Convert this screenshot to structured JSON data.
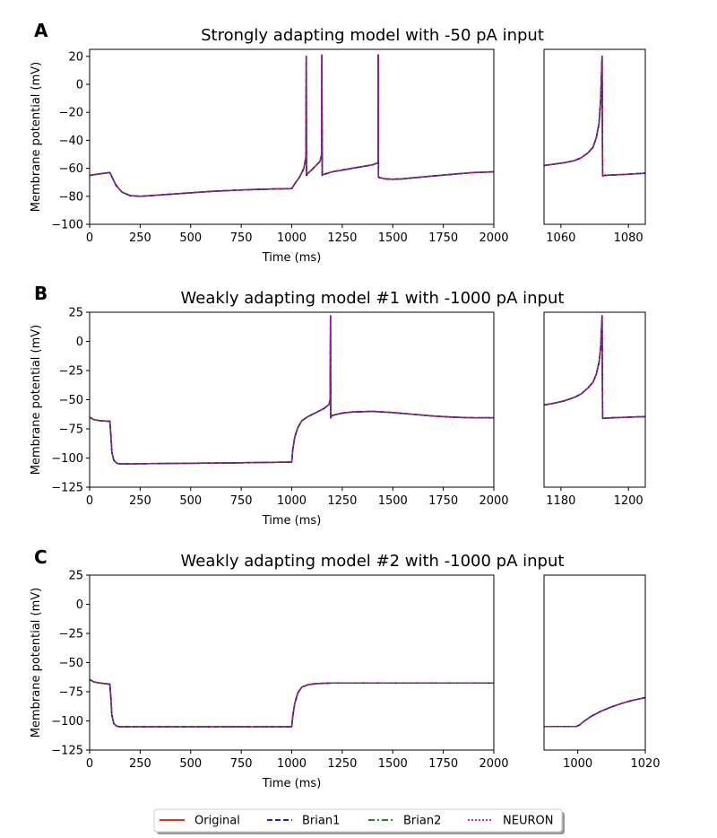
{
  "legend": [
    {
      "label": "Original",
      "color": "#ff0000",
      "dash": "solid"
    },
    {
      "label": "Brian1",
      "color": "#0000cc",
      "dash": "dashed"
    },
    {
      "label": "Brian2",
      "color": "#007700",
      "dash": "dashdot"
    },
    {
      "label": "NEURON",
      "color": "#cc00cc",
      "dash": "dotted"
    }
  ],
  "chart_data": [
    {
      "type": "line",
      "panel": "A",
      "title": "Strongly adapting model with -50 pA input",
      "xlabel": "Time (ms)",
      "ylabel": "Membrane potential (mV)",
      "xlim": [
        0,
        2000
      ],
      "ylim": [
        -100,
        25
      ],
      "xticks": [
        0,
        250,
        500,
        750,
        1000,
        1250,
        1500,
        1750,
        2000
      ],
      "yticks": [
        -100,
        -80,
        -60,
        -40,
        -20,
        0,
        20
      ],
      "x": [
        0,
        50,
        100,
        110,
        130,
        160,
        200,
        250,
        300,
        400,
        500,
        600,
        700,
        800,
        900,
        1000,
        1020,
        1040,
        1060,
        1070,
        1072,
        1073,
        1074,
        1080,
        1100,
        1120,
        1140,
        1148,
        1149,
        1151,
        1155,
        1200,
        1300,
        1400,
        1427,
        1428,
        1429,
        1431,
        1460,
        1500,
        1550,
        1600,
        1700,
        1800,
        1900,
        2000
      ],
      "y": [
        -65,
        -64,
        -63,
        -66,
        -72,
        -77,
        -79.5,
        -80,
        -79.5,
        -78.5,
        -77.5,
        -76.5,
        -75.8,
        -75.2,
        -74.8,
        -74.5,
        -70,
        -66,
        -60,
        -52,
        20,
        -65,
        -65,
        -63.5,
        -61,
        -58,
        -55,
        -50,
        21,
        -65,
        -64.5,
        -62.5,
        -60,
        -57.5,
        -56,
        21,
        -66,
        -66.5,
        -67.5,
        -67.8,
        -67.5,
        -66.8,
        -65.5,
        -64.2,
        -63,
        -62.5
      ],
      "series": [
        {
          "name": "Original"
        },
        {
          "name": "Brian1"
        },
        {
          "name": "Brian2"
        },
        {
          "name": "NEURON"
        }
      ],
      "inset": {
        "xlim": [
          1055,
          1085
        ],
        "ylim": [
          -100,
          25
        ],
        "xticks": [
          1060,
          1080
        ],
        "x": [
          1055,
          1058,
          1061,
          1064,
          1066,
          1068,
          1069.5,
          1070.5,
          1071.3,
          1071.8,
          1072.2,
          1072.35,
          1073,
          1078,
          1085
        ],
        "y": [
          -58,
          -57,
          -56,
          -54.5,
          -52.5,
          -49,
          -45,
          -38,
          -28,
          -10,
          20,
          -65.5,
          -65,
          -64.5,
          -63.5
        ]
      }
    },
    {
      "type": "line",
      "panel": "B",
      "title": "Weakly adapting model #1 with -1000 pA input",
      "xlabel": "Time (ms)",
      "ylabel": "Membrane potential (mV)",
      "xlim": [
        0,
        2000
      ],
      "ylim": [
        -125,
        25
      ],
      "xticks": [
        0,
        250,
        500,
        750,
        1000,
        1250,
        1500,
        1750,
        2000
      ],
      "yticks": [
        -125,
        -100,
        -75,
        -50,
        -25,
        0,
        25
      ],
      "x": [
        0,
        20,
        50,
        100,
        105,
        110,
        120,
        135,
        150,
        200,
        300,
        500,
        700,
        900,
        1000,
        1005,
        1015,
        1030,
        1050,
        1080,
        1120,
        1160,
        1185,
        1190,
        1192,
        1193,
        1194,
        1200,
        1250,
        1300,
        1400,
        1500,
        1600,
        1700,
        1800,
        1900,
        2000
      ],
      "y": [
        -65,
        -67,
        -68,
        -68.5,
        -80,
        -95,
        -102,
        -104.5,
        -105,
        -105,
        -104.8,
        -104.5,
        -104.2,
        -103.7,
        -103.5,
        -93,
        -82,
        -74,
        -68,
        -64.5,
        -61,
        -57.5,
        -54,
        -50,
        22,
        -65.5,
        -65,
        -63.5,
        -61.5,
        -60.5,
        -60,
        -61,
        -62.5,
        -64,
        -65,
        -65.5,
        -65.5
      ],
      "series": [
        {
          "name": "Original"
        },
        {
          "name": "Brian1"
        },
        {
          "name": "Brian2"
        },
        {
          "name": "NEURON"
        }
      ],
      "inset": {
        "xlim": [
          1175,
          1205
        ],
        "ylim": [
          -125,
          25
        ],
        "xticks": [
          1180,
          1200
        ],
        "x": [
          1175,
          1178,
          1181,
          1184,
          1186,
          1188,
          1189.5,
          1190.5,
          1191.3,
          1191.8,
          1192.2,
          1192.35,
          1195,
          1200,
          1205
        ],
        "y": [
          -54.5,
          -53,
          -51,
          -48,
          -45,
          -40,
          -35,
          -28,
          -18,
          -5,
          22,
          -66,
          -65.5,
          -65,
          -64.5
        ]
      }
    },
    {
      "type": "line",
      "panel": "C",
      "title": "Weakly adapting model #2 with -1000 pA input",
      "xlabel": "Time (ms)",
      "ylabel": "Membrane potential (mV)",
      "xlim": [
        0,
        2000
      ],
      "ylim": [
        -125,
        25
      ],
      "xticks": [
        0,
        250,
        500,
        750,
        1000,
        1250,
        1500,
        1750,
        2000
      ],
      "yticks": [
        -125,
        -100,
        -75,
        -50,
        -25,
        0,
        25
      ],
      "x": [
        0,
        20,
        50,
        100,
        105,
        110,
        120,
        135,
        150,
        300,
        500,
        700,
        900,
        1000,
        1005,
        1015,
        1030,
        1050,
        1080,
        1120,
        1200,
        1400,
        1600,
        1800,
        2000
      ],
      "y": [
        -64.5,
        -66.5,
        -67.5,
        -68.5,
        -80,
        -95,
        -102.5,
        -104.5,
        -105,
        -105,
        -105,
        -105,
        -105,
        -105,
        -96,
        -85,
        -76,
        -71,
        -69,
        -68,
        -67.5,
        -67.5,
        -67.5,
        -67.5,
        -67.5
      ],
      "series": [
        {
          "name": "Original"
        },
        {
          "name": "Brian1"
        },
        {
          "name": "Brian2"
        },
        {
          "name": "NEURON"
        }
      ],
      "inset": {
        "xlim": [
          990,
          1020
        ],
        "ylim": [
          -125,
          25
        ],
        "xticks": [
          1000,
          1020
        ],
        "x": [
          990,
          995,
          999.5,
          1000.5,
          1002,
          1004,
          1007,
          1010,
          1013,
          1016,
          1020
        ],
        "y": [
          -104.8,
          -104.8,
          -104.8,
          -103.5,
          -100,
          -96,
          -91.5,
          -88,
          -85,
          -82.5,
          -80
        ]
      }
    }
  ]
}
